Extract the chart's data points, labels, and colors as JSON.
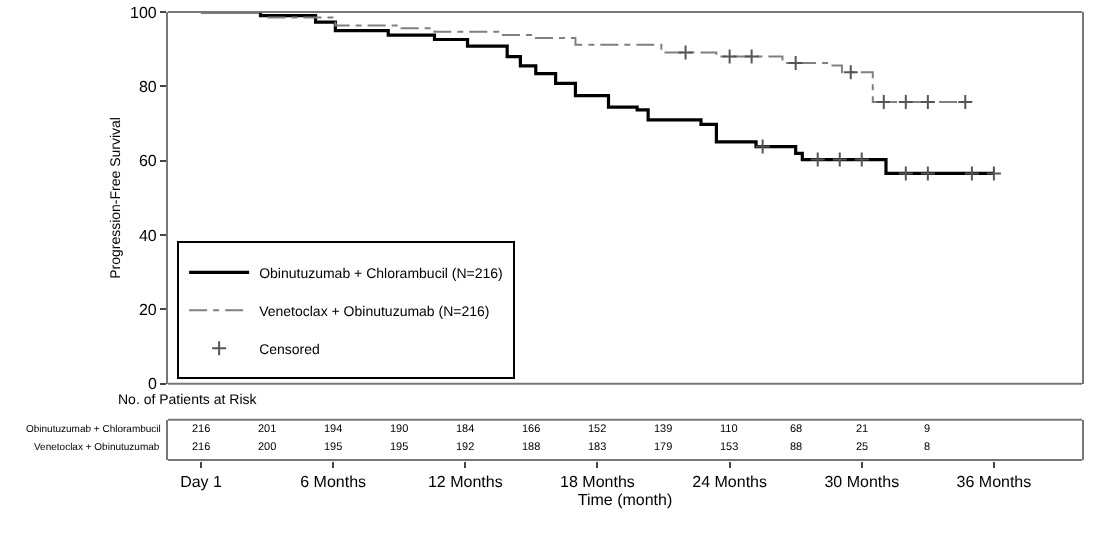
{
  "chart_data": {
    "type": "step",
    "ylabel": "Progression-Free Survival",
    "xlabel": "Time (month)",
    "xlim": [
      -1.5,
      40
    ],
    "xticks": [
      {
        "value": 0,
        "label": "Day 1"
      },
      {
        "value": 6,
        "label": "6 Months"
      },
      {
        "value": 12,
        "label": "12 Months"
      },
      {
        "value": 18,
        "label": "18 Months"
      },
      {
        "value": 24,
        "label": "24 Months"
      },
      {
        "value": 30,
        "label": "30 Months"
      },
      {
        "value": 36,
        "label": "36 Months"
      }
    ],
    "ylim": [
      0,
      100
    ],
    "yticks": [
      0,
      20,
      40,
      60,
      80,
      100
    ],
    "legend": "bottom left",
    "series": [
      {
        "name": "Obinutuzumab + Chlorambucil (N=216)",
        "color": "#000000",
        "line_style": "solid",
        "x": [
          0,
          2.7,
          5.2,
          6.1,
          8.5,
          10.6,
          12.1,
          13.9,
          14.5,
          15.2,
          16.1,
          17,
          18.5,
          19.8,
          20.3,
          22.7,
          23.4,
          25.2,
          27,
          27.3,
          31.1,
          36
        ],
        "values": [
          100,
          99,
          97.3,
          95,
          93.8,
          92.6,
          90.8,
          88,
          85.5,
          83.4,
          80.8,
          77.5,
          74.4,
          73.7,
          71,
          69.8,
          65.1,
          63.8,
          62,
          60.3,
          56.6,
          56.6
        ]
      },
      {
        "name": "Venetoclax + Obinutuzumab (N=216)",
        "color": "#808080",
        "line_style": "dashed",
        "x": [
          0,
          3,
          6.1,
          9.1,
          10.6,
          13.6,
          15.2,
          17,
          20.9,
          23.4,
          26.4,
          28.5,
          29.1,
          30.5,
          34.7
        ],
        "values": [
          100,
          98.5,
          96.4,
          95.6,
          94.7,
          93.8,
          93,
          91.2,
          89.1,
          88,
          86.3,
          85.6,
          83.8,
          75.8,
          75.8
        ]
      },
      {
        "name": "Censored",
        "type": "scatter",
        "marker": "cross",
        "color": "#555555",
        "x": [
          25.5,
          28,
          29,
          30,
          32,
          33,
          35,
          36,
          22,
          24,
          25,
          27,
          29.5,
          31,
          32,
          33,
          34.7
        ],
        "values": [
          63.8,
          60.3,
          60.3,
          60.3,
          56.6,
          56.6,
          56.6,
          56.6,
          89.1,
          88,
          88,
          86.3,
          83.8,
          75.8,
          75.8,
          75.8,
          75.8
        ]
      }
    ],
    "annotations": [
      "No. of Patients at Risk",
      "Obinutuzumab + Chlorambucil",
      "Venetoclax + Obinutuzumab",
      "216",
      "201",
      "194",
      "190",
      "184",
      "166",
      "152",
      "139",
      "110",
      "68",
      "21",
      "9",
      "216",
      "200",
      "195",
      "195",
      "192",
      "188",
      "183",
      "179",
      "153",
      "88",
      "25",
      "8"
    ]
  }
}
